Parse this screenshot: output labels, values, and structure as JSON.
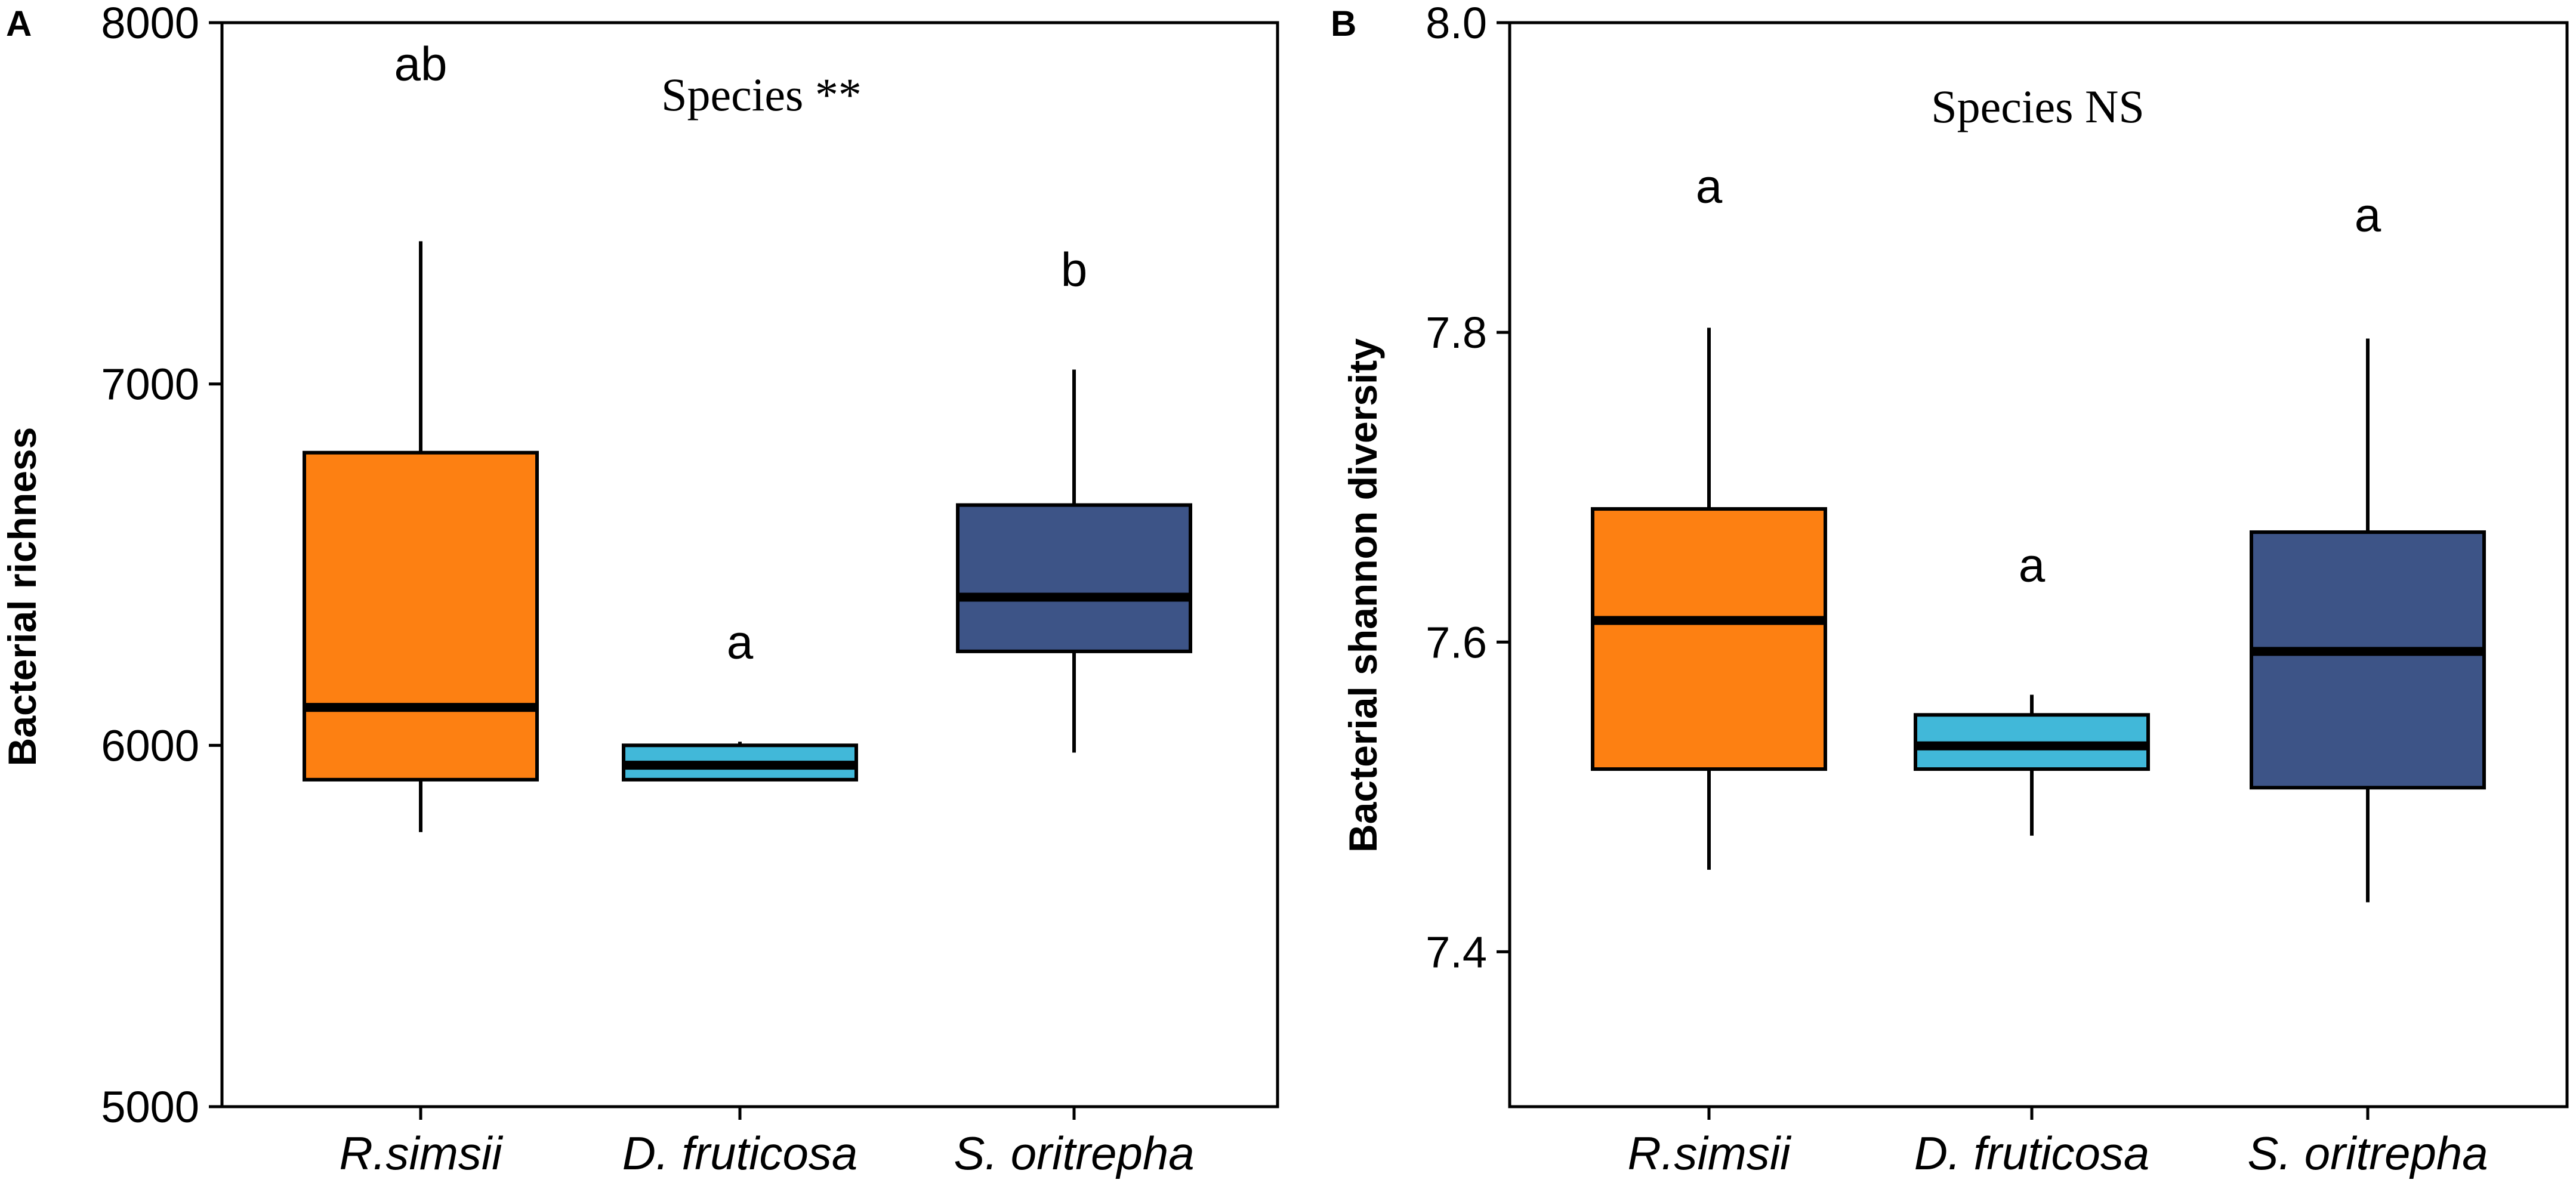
{
  "chart_data": [
    {
      "panel": "A",
      "type": "box",
      "title": "Species **",
      "ylabel": "Bacterial richness",
      "ylim": [
        5000,
        8000
      ],
      "yticks": [
        "5000",
        "6000",
        "7000",
        "8000"
      ],
      "categories": [
        "R.simsii",
        "D. fruticosa",
        "S. oritrepha"
      ],
      "boxes": [
        {
          "category": "R.simsii",
          "min": 5760,
          "q1": 5905,
          "median": 6105,
          "q3": 6810,
          "max": 7395,
          "color": "#fd8012",
          "letter": "ab"
        },
        {
          "category": "D. fruticosa",
          "min": 5905,
          "q1": 5905,
          "median": 5945,
          "q3": 6000,
          "max": 6010,
          "color": "#41b8d9",
          "letter": "a"
        },
        {
          "category": "S. oritrepha",
          "min": 5980,
          "q1": 6260,
          "median": 6410,
          "q3": 6665,
          "max": 7040,
          "color": "#3d5487",
          "letter": "b"
        }
      ]
    },
    {
      "panel": "B",
      "type": "box",
      "title": "Species NS",
      "ylabel": "Bacterial shannon diversity",
      "ylim": [
        7.3,
        8.0
      ],
      "yticks": [
        "7.4",
        "7.6",
        "7.8",
        "8.0"
      ],
      "categories": [
        "R.simsii",
        "D. fruticosa",
        "S. oritrepha"
      ],
      "boxes": [
        {
          "category": "R.simsii",
          "min": 7.453,
          "q1": 7.518,
          "median": 7.614,
          "q3": 7.686,
          "max": 7.803,
          "color": "#fd8012",
          "letter": "a"
        },
        {
          "category": "D. fruticosa",
          "min": 7.475,
          "q1": 7.518,
          "median": 7.533,
          "q3": 7.553,
          "max": 7.566,
          "color": "#41b8d9",
          "letter": "a"
        },
        {
          "category": "S. oritrepha",
          "min": 7.432,
          "q1": 7.506,
          "median": 7.594,
          "q3": 7.671,
          "max": 7.796,
          "color": "#3d5487",
          "letter": "a"
        }
      ]
    }
  ]
}
